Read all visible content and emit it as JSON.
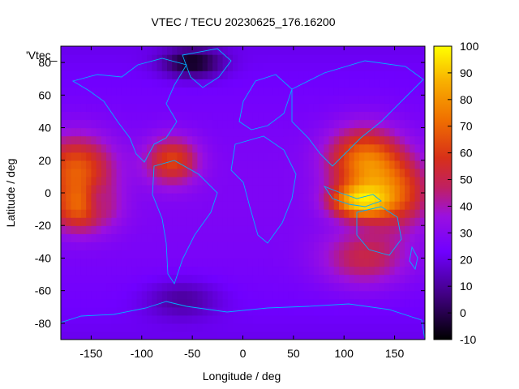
{
  "chart_data": {
    "type": "heatmap",
    "title": "VTEC / TECU 20230625_176.16200",
    "xlabel": "Longitude / deg",
    "ylabel": "Latitude / deg",
    "key_label": "'Vtec_",
    "xlim": [
      -180,
      180
    ],
    "ylim": [
      -90,
      90
    ],
    "xticks": [
      -150,
      -100,
      -50,
      0,
      50,
      100,
      150
    ],
    "yticks": [
      -80,
      -60,
      -40,
      -20,
      0,
      20,
      40,
      60,
      80
    ],
    "colorbar": {
      "min": -10,
      "max": 100,
      "ticks": [
        100,
        90,
        80,
        70,
        60,
        50,
        40,
        30,
        20,
        10,
        0,
        -10
      ]
    },
    "grid": false,
    "coastline_color": "#00b0ff",
    "features": [
      {
        "lon": -165,
        "lat": 15,
        "value": 55,
        "sx": 25,
        "sy": 14
      },
      {
        "lon": -160,
        "lat": -10,
        "value": 50,
        "sx": 22,
        "sy": 10
      },
      {
        "lon": -70,
        "lat": 20,
        "value": 50,
        "sx": 18,
        "sy": 10
      },
      {
        "lon": 120,
        "lat": 20,
        "value": 60,
        "sx": 25,
        "sy": 14
      },
      {
        "lon": 115,
        "lat": -5,
        "value": 68,
        "sx": 20,
        "sy": 7
      },
      {
        "lon": 150,
        "lat": 0,
        "value": 50,
        "sx": 25,
        "sy": 15
      },
      {
        "lon": 120,
        "lat": -40,
        "value": 40,
        "sx": 30,
        "sy": 12
      },
      {
        "lon": -50,
        "lat": 80,
        "value": -8,
        "sx": 20,
        "sy": 6
      },
      {
        "lon": -145,
        "lat": -5,
        "value": 5,
        "sx": 8,
        "sy": 8
      },
      {
        "lon": -60,
        "lat": -65,
        "value": 6,
        "sx": 25,
        "sy": 8
      }
    ]
  }
}
